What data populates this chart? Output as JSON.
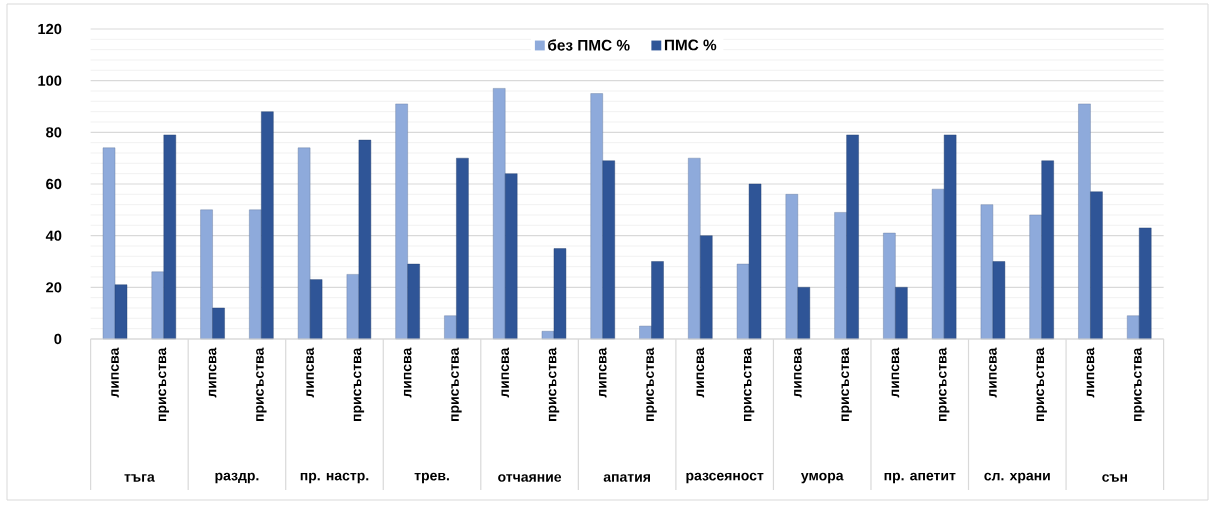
{
  "chart_data": {
    "type": "bar",
    "categories": [
      "липсва",
      "присъства",
      "липсва",
      "присъства",
      "липсва",
      "присъства",
      "липсва",
      "присъства",
      "липсва",
      "присъства",
      "липсва",
      "присъства",
      "липсва",
      "присъства",
      "липсва",
      "присъства",
      "липсва",
      "присъства",
      "липсва",
      "присъства",
      "липсва",
      "присъства"
    ],
    "series": [
      {
        "name": "без ПМС  %",
        "color": "#8eaadb",
        "values": [
          74,
          26,
          50,
          50,
          74,
          25,
          91,
          9,
          97,
          3,
          95,
          5,
          70,
          29,
          56,
          49,
          41,
          58,
          52,
          48,
          91,
          9
        ]
      },
      {
        "name": "ПМС  %",
        "color": "#2f5597",
        "values": [
          21,
          79,
          12,
          88,
          23,
          77,
          29,
          70,
          64,
          35,
          69,
          30,
          40,
          60,
          20,
          79,
          20,
          79,
          30,
          69,
          57,
          43
        ]
      }
    ],
    "annotations": [
      "тъга",
      "раздр.",
      "пр. настр.",
      "трев.",
      "отчаяние",
      "апатия",
      "разсеяност",
      "умора",
      "пр. апетит",
      "сл. храни",
      "сън"
    ],
    "ylim": [
      0,
      120
    ],
    "yticks": [
      0,
      20,
      40,
      60,
      80,
      100,
      120
    ],
    "grid": "y",
    "legend": "top"
  }
}
